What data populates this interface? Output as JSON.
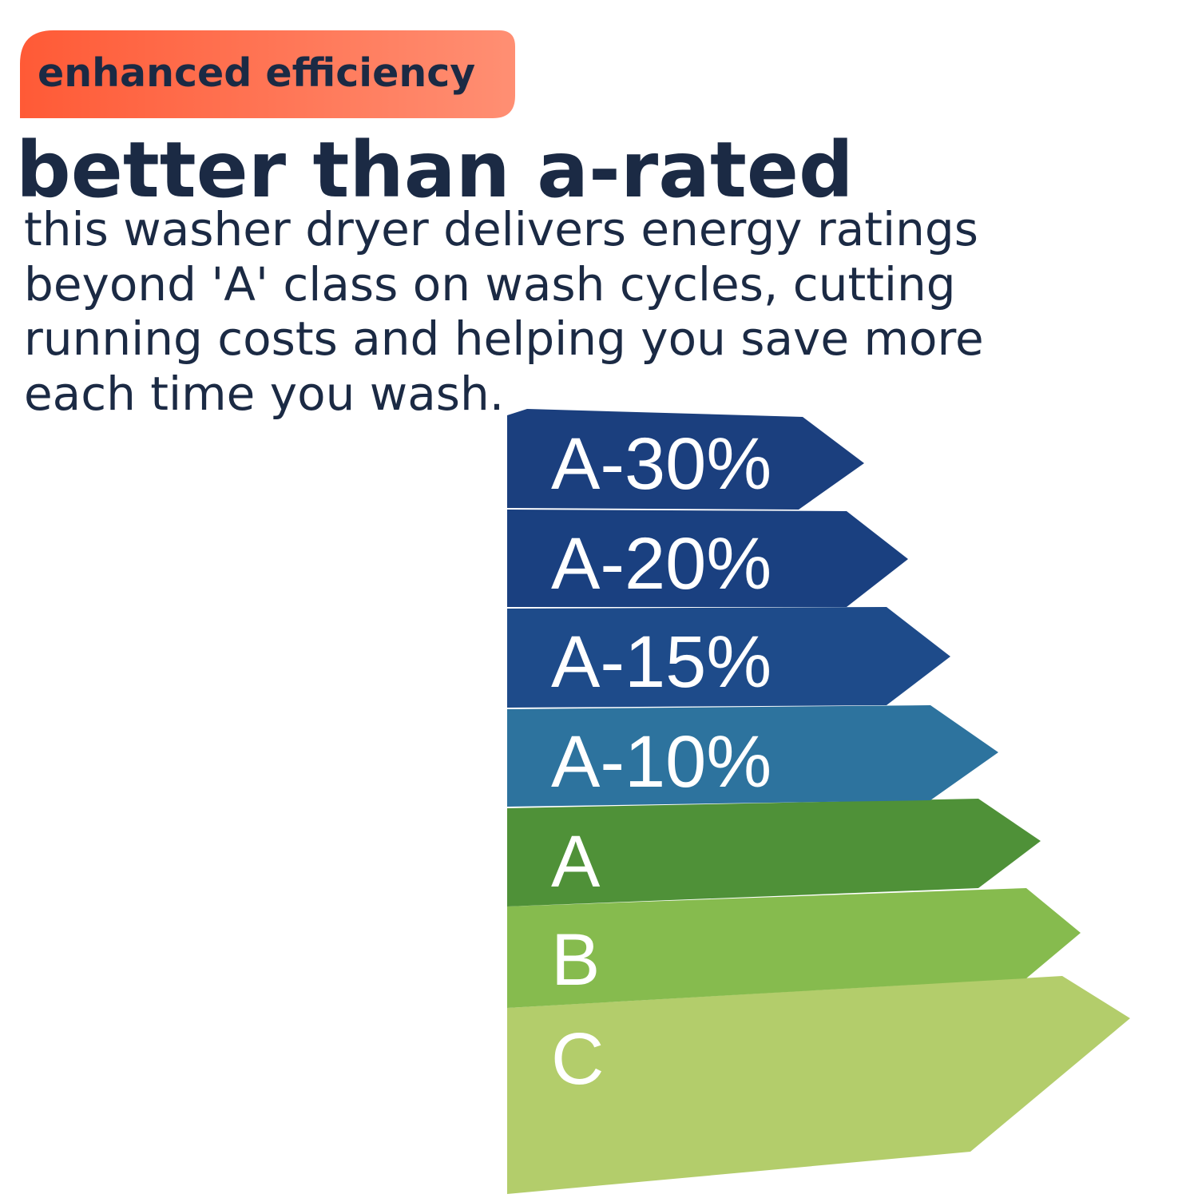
{
  "badge": "enhanced efficiency",
  "title": "better than a-rated",
  "body_lines": [
    "this washer dryer delivers energy ratings",
    "beyond 'A' class on wash cycles, cutting",
    "running costs and helping you save more",
    "each time you wash."
  ],
  "energy_labels": [
    "A-30%",
    "A-20%",
    "A-15%",
    "A-10%",
    "A",
    "B",
    "C"
  ]
}
